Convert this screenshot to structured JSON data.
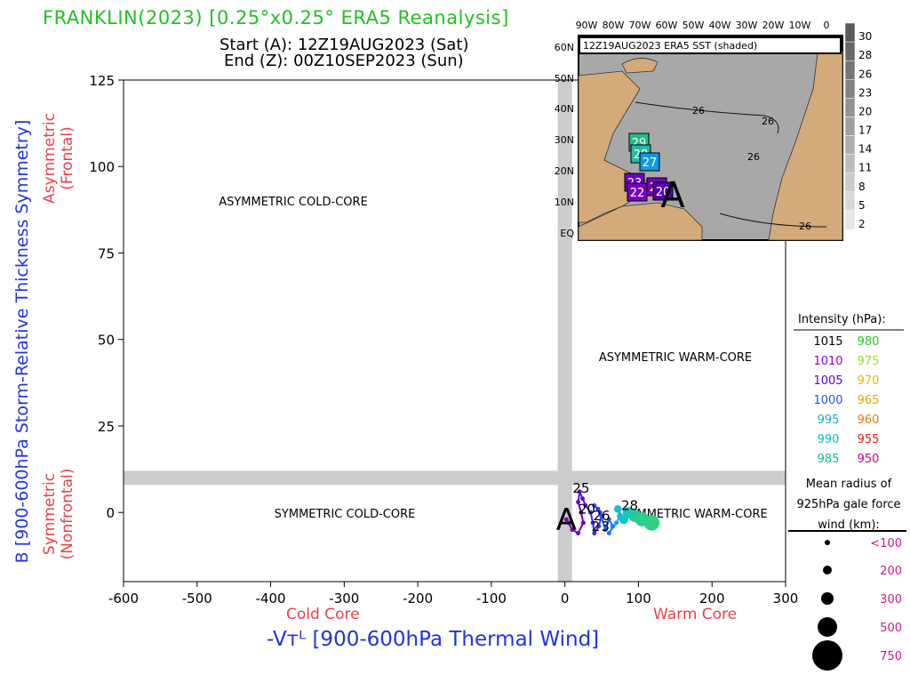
{
  "header": {
    "title": "FRANKLIN(2023) [0.25°x0.25° ERA5 Reanalysis]",
    "start": "Start (A): 12Z19AUG2023 (Sat)",
    "end": "End (Z): 00Z10SEP2023 (Sun)"
  },
  "axes": {
    "ylabel": "B [900-600hPa Storm-Relative Thickness Symmetry]",
    "ylabel_asym": [
      "Asymmetric",
      "(Frontal)"
    ],
    "ylabel_sym": [
      "Symmetric",
      "(Nonfrontal)"
    ],
    "xlabel": "-Vᴛᴸ [900-600hPa Thermal Wind]",
    "cold_core": "Cold Core",
    "warm_core": "Warm Core"
  },
  "quadrants": {
    "asym_cold": "ASYMMETRIC COLD-CORE",
    "asym_warm": "ASYMMETRIC WARM-CORE",
    "sym_cold": "SYMMETRIC COLD-CORE",
    "sym_warm": "SYMMETRIC WARM-CORE"
  },
  "chart_data": {
    "type": "scatter",
    "title": "FRANKLIN(2023) [0.25°x0.25° ERA5 Reanalysis]",
    "xlabel": "-Vᴛᴸ [900-600hPa Thermal Wind]",
    "ylabel": "B [900-600hPa Storm-Relative Thickness Symmetry]",
    "xlim": [
      -600,
      300
    ],
    "ylim": [
      -20,
      125
    ],
    "x_ticks": [
      -600,
      -500,
      -400,
      -300,
      -200,
      -100,
      0,
      100,
      200,
      300
    ],
    "y_ticks": [
      0,
      25,
      50,
      75,
      100,
      125
    ],
    "grid": false,
    "threshold_lines": {
      "x": 0,
      "y": 10
    },
    "track": [
      {
        "x": 5,
        "y": -3,
        "color": "#8000c0"
      },
      {
        "x": 2,
        "y": -2,
        "color": "#8000c0"
      },
      {
        "x": 10,
        "y": -5,
        "color": "#8000c0"
      },
      {
        "x": 18,
        "y": -6,
        "color": "#7700b8"
      },
      {
        "x": 25,
        "y": -3,
        "color": "#7700b8"
      },
      {
        "x": 22,
        "y": 0,
        "color": "#6a00c8"
      },
      {
        "x": 18,
        "y": 3,
        "color": "#6a00c8"
      },
      {
        "x": 20,
        "y": 6,
        "color": "#5a10d0"
      },
      {
        "x": 24,
        "y": 4,
        "color": "#5a10d0"
      },
      {
        "x": 28,
        "y": 2,
        "color": "#5a10d0"
      },
      {
        "x": 35,
        "y": 0,
        "color": "#4020e0"
      },
      {
        "x": 38,
        "y": -3,
        "color": "#4020e0"
      },
      {
        "x": 40,
        "y": -6,
        "color": "#3030e8"
      },
      {
        "x": 46,
        "y": -4,
        "color": "#3030e8"
      },
      {
        "x": 50,
        "y": -1,
        "color": "#3040f0"
      },
      {
        "x": 45,
        "y": 1,
        "color": "#3040f0"
      },
      {
        "x": 40,
        "y": 2,
        "color": "#2850f0"
      },
      {
        "x": 48,
        "y": 0,
        "color": "#2850f0"
      },
      {
        "x": 55,
        "y": -5,
        "color": "#2060f0"
      },
      {
        "x": 60,
        "y": -2,
        "color": "#2060f0"
      },
      {
        "x": 65,
        "y": -4,
        "color": "#1080f0"
      },
      {
        "x": 60,
        "y": -6,
        "color": "#1080f0"
      },
      {
        "x": 70,
        "y": -3,
        "color": "#10a0f0"
      },
      {
        "x": 75,
        "y": -1,
        "color": "#10b0e8"
      },
      {
        "x": 72,
        "y": 1,
        "color": "#10c0d8"
      },
      {
        "x": 80,
        "y": -2,
        "color": "#10c8c0"
      },
      {
        "x": 86,
        "y": 0,
        "color": "#18c8b0"
      },
      {
        "x": 95,
        "y": -1,
        "color": "#20c8a0"
      },
      {
        "x": 105,
        "y": -2,
        "color": "#28d090"
      },
      {
        "x": 118,
        "y": -3,
        "color": "#30d080"
      }
    ],
    "point_labels": [
      {
        "text": "A",
        "x": 2,
        "y": -2
      },
      {
        "text": "25",
        "x": 22,
        "y": 7
      },
      {
        "text": "28",
        "x": 88,
        "y": 2
      },
      {
        "text": "26",
        "x": 50,
        "y": -1
      },
      {
        "text": "20",
        "x": 30,
        "y": 1
      },
      {
        "text": "2",
        "x": 42,
        "y": -4
      },
      {
        "text": "3",
        "x": 55,
        "y": -4
      }
    ]
  },
  "inset_map": {
    "banner": "12Z19AUG2023 ERA5 SST (shaded)",
    "lon_labels": [
      "90W",
      "80W",
      "70W",
      "60W",
      "50W",
      "40W",
      "30W",
      "20W",
      "10W",
      "0"
    ],
    "lat_labels": [
      "60N",
      "50N",
      "40N",
      "30N",
      "20N",
      "10N",
      "EQ"
    ],
    "sst_colorbar": [
      "30",
      "28",
      "26",
      "23",
      "20",
      "17",
      "14",
      "11",
      "8",
      "5",
      "2"
    ],
    "contour_labels": [
      "26",
      "26",
      "26",
      "26"
    ],
    "track_labels": [
      "29",
      "28",
      "27",
      "23",
      "22",
      "21",
      "20"
    ],
    "start_marker": "A"
  },
  "legend": {
    "intensity_title": "Intensity (hPa):",
    "intensity": [
      {
        "label": "1015",
        "color": "#000000"
      },
      {
        "label": "980",
        "color": "#22cc22"
      },
      {
        "label": "1010",
        "color": "#9900cc"
      },
      {
        "label": "975",
        "color": "#99dd33"
      },
      {
        "label": "1005",
        "color": "#6600cc"
      },
      {
        "label": "970",
        "color": "#ddbb00"
      },
      {
        "label": "1000",
        "color": "#2255dd"
      },
      {
        "label": "965",
        "color": "#ddaa00"
      },
      {
        "label": "995",
        "color": "#11aadd"
      },
      {
        "label": "960",
        "color": "#ee7711"
      },
      {
        "label": "990",
        "color": "#11bbbb"
      },
      {
        "label": "955",
        "color": "#dd2222"
      },
      {
        "label": "985",
        "color": "#11bb88"
      },
      {
        "label": "950",
        "color": "#cc0088"
      }
    ],
    "radius_title": "Mean radius of 925hPa gale force wind (km):",
    "radii": [
      {
        "label": "<100",
        "size": 1
      },
      {
        "label": "200",
        "size": 2
      },
      {
        "label": "300",
        "size": 3
      },
      {
        "label": "500",
        "size": 4
      },
      {
        "label": "750",
        "size": 5
      }
    ]
  }
}
